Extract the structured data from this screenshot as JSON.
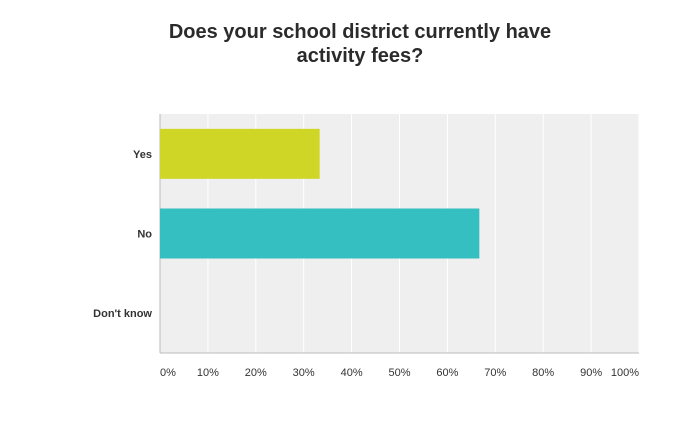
{
  "chart_data": {
    "type": "bar",
    "orientation": "horizontal",
    "title_lines": [
      "Does your school district currently have",
      "activity fees?"
    ],
    "categories": [
      "Yes",
      "No",
      "Don't know"
    ],
    "values": [
      33.33,
      66.67,
      0
    ],
    "colors": [
      "#d0d625",
      "#35bfc0",
      "#e8743b"
    ],
    "xlim": [
      0,
      100
    ],
    "ticks": [
      "0%",
      "10%",
      "20%",
      "30%",
      "40%",
      "50%",
      "60%",
      "70%",
      "80%",
      "90%",
      "100%"
    ],
    "grid": true,
    "xlabel": "",
    "ylabel": "",
    "legend": "none"
  }
}
